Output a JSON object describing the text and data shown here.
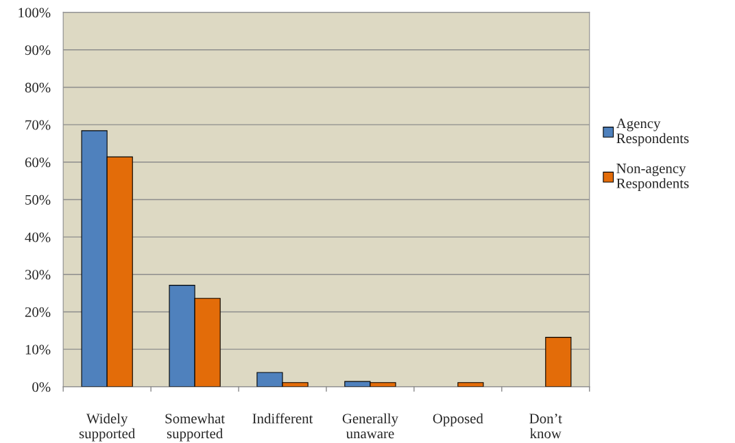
{
  "chart_data": {
    "type": "bar",
    "categories": [
      "Widely\nsupported",
      "Somewhat\nsupported",
      "Indifferent",
      "Generally\nunaware",
      "Opposed",
      "Don’t\nknow"
    ],
    "series": [
      {
        "name": "Agency\nRespondents",
        "color": "#4f81bd",
        "values": [
          68.4,
          27.1,
          3.8,
          1.4,
          null,
          null
        ]
      },
      {
        "name": "Non-agency\nRespondents",
        "color": "#e36c09",
        "values": [
          61.4,
          23.6,
          1.1,
          1.1,
          1.1,
          13.2
        ]
      }
    ],
    "ylim": [
      0,
      100
    ],
    "yticks": [
      {
        "value": 0,
        "label": "0%"
      },
      {
        "value": 10,
        "label": "10%"
      },
      {
        "value": 20,
        "label": "20%"
      },
      {
        "value": 30,
        "label": "30%"
      },
      {
        "value": 40,
        "label": "40%"
      },
      {
        "value": 50,
        "label": "50%"
      },
      {
        "value": 60,
        "label": "60%"
      },
      {
        "value": 70,
        "label": "70%"
      },
      {
        "value": 80,
        "label": "80%"
      },
      {
        "value": 90,
        "label": "90%"
      },
      {
        "value": 100,
        "label": "100%"
      }
    ],
    "grid": "y",
    "legend": "right"
  }
}
